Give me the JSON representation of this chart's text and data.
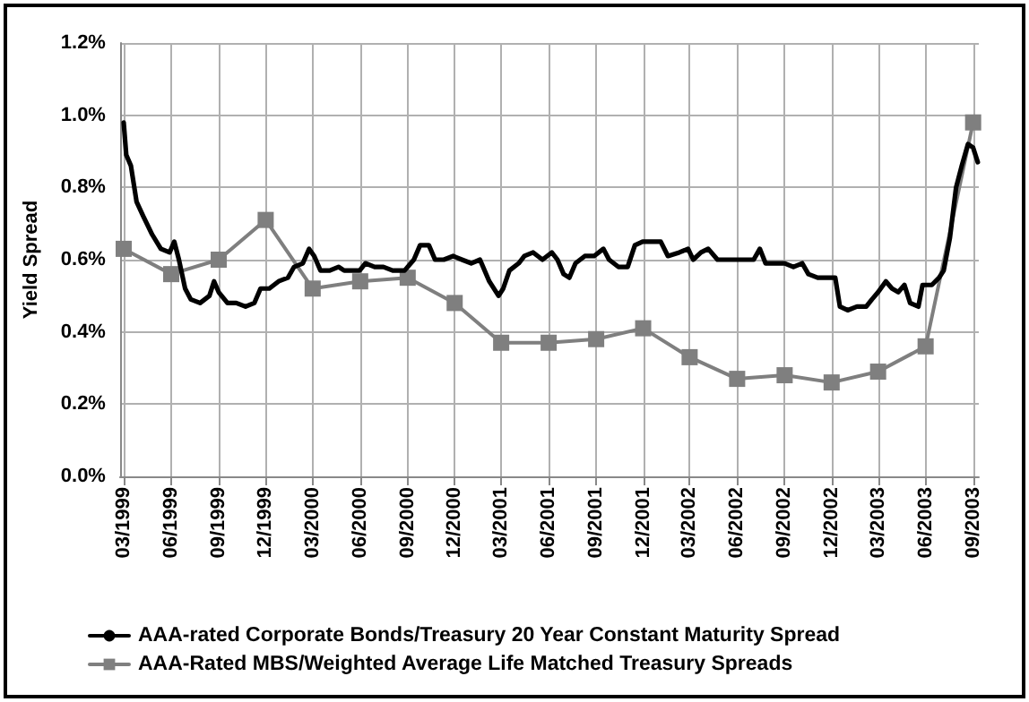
{
  "chart_data": {
    "type": "line",
    "ylabel": "Yield Spread",
    "legend": "bottom",
    "grid": true,
    "xlim": [
      "1999-02-22",
      "2003-09-12"
    ],
    "xticks": [
      {
        "value": "1999-03",
        "label": "03/1999"
      },
      {
        "value": "1999-06",
        "label": "06/1999"
      },
      {
        "value": "1999-09",
        "label": "09/1999"
      },
      {
        "value": "1999-12",
        "label": "12/1999"
      },
      {
        "value": "2000-03",
        "label": "03/2000"
      },
      {
        "value": "2000-06",
        "label": "06/2000"
      },
      {
        "value": "2000-09",
        "label": "09/2000"
      },
      {
        "value": "2000-12",
        "label": "12/2000"
      },
      {
        "value": "2001-03",
        "label": "03/2001"
      },
      {
        "value": "2001-06",
        "label": "06/2001"
      },
      {
        "value": "2001-09",
        "label": "09/2001"
      },
      {
        "value": "2001-12",
        "label": "12/2001"
      },
      {
        "value": "2002-03",
        "label": "03/2002"
      },
      {
        "value": "2002-06",
        "label": "06/2002"
      },
      {
        "value": "2002-09",
        "label": "09/2002"
      },
      {
        "value": "2002-12",
        "label": "12/2002"
      },
      {
        "value": "2003-03",
        "label": "03/2003"
      },
      {
        "value": "2003-06",
        "label": "06/2003"
      },
      {
        "value": "2003-09",
        "label": "09/2003"
      }
    ],
    "ylim": [
      0,
      1.2
    ],
    "yticks": [
      {
        "value": 0,
        "label": "0.0%"
      },
      {
        "value": 0.2,
        "label": "0.2%"
      },
      {
        "value": 0.4,
        "label": "0.4%"
      },
      {
        "value": 0.6,
        "label": "0.6%"
      },
      {
        "value": 0.8,
        "label": "0.8%"
      },
      {
        "value": 1.0,
        "label": "1.0%"
      },
      {
        "value": 1.2,
        "label": "1.2%"
      }
    ],
    "series": [
      {
        "name": "AAA-rated Corporate Bonds/Treasury 20 Year Constant Maturity Spread",
        "color": "#000000",
        "marker": "none",
        "line_style": "solid",
        "x": [
          "1999-03-01",
          "1999-03-06",
          "1999-03-15",
          "1999-03-26",
          "1999-04-08",
          "1999-04-25",
          "1999-05-12",
          "1999-05-29",
          "1999-06-07",
          "1999-06-16",
          "1999-06-28",
          "1999-07-09",
          "1999-07-27",
          "1999-08-14",
          "1999-08-23",
          "1999-09-01",
          "1999-09-18",
          "1999-10-05",
          "1999-10-23",
          "1999-11-09",
          "1999-11-21",
          "1999-12-08",
          "1999-12-26",
          "2000-01-13",
          "2000-01-25",
          "2000-02-11",
          "2000-02-23",
          "2000-03-04",
          "2000-03-16",
          "2000-04-03",
          "2000-04-20",
          "2000-05-01",
          "2000-05-19",
          "2000-05-31",
          "2000-06-11",
          "2000-06-29",
          "2000-07-16",
          "2000-08-03",
          "2000-08-26",
          "2000-09-13",
          "2000-09-25",
          "2000-10-12",
          "2000-10-24",
          "2000-11-10",
          "2000-11-28",
          "2000-12-15",
          "2001-01-02",
          "2001-01-19",
          "2001-02-06",
          "2001-02-24",
          "2001-03-05",
          "2001-03-17",
          "2001-04-04",
          "2001-04-15",
          "2001-05-02",
          "2001-05-20",
          "2001-06-07",
          "2001-06-18",
          "2001-06-30",
          "2001-07-11",
          "2001-07-23",
          "2001-08-10",
          "2001-08-28",
          "2001-09-15",
          "2001-09-26",
          "2001-10-14",
          "2001-11-01",
          "2001-11-15",
          "2001-11-30",
          "2001-12-17",
          "2002-01-04",
          "2002-01-18",
          "2002-02-09",
          "2002-02-26",
          "2002-03-08",
          "2002-03-23",
          "2002-04-06",
          "2002-04-24",
          "2002-05-11",
          "2002-05-29",
          "2002-06-16",
          "2002-07-03",
          "2002-07-15",
          "2002-07-26",
          "2002-08-13",
          "2002-09-01",
          "2002-09-18",
          "2002-10-05",
          "2002-10-17",
          "2002-11-04",
          "2002-11-21",
          "2002-12-08",
          "2002-12-17",
          "2003-01-01",
          "2003-01-19",
          "2003-02-06",
          "2003-02-17",
          "2003-03-01",
          "2003-03-16",
          "2003-03-28",
          "2003-04-09",
          "2003-04-21",
          "2003-05-02",
          "2003-05-18",
          "2003-05-26",
          "2003-06-13",
          "2003-06-27",
          "2003-07-06",
          "2003-07-18",
          "2003-07-30",
          "2003-08-10",
          "2003-08-22",
          "2003-09-01",
          "2003-09-10"
        ],
        "values": [
          0.98,
          0.89,
          0.86,
          0.76,
          0.72,
          0.67,
          0.63,
          0.62,
          0.65,
          0.6,
          0.52,
          0.49,
          0.48,
          0.5,
          0.54,
          0.51,
          0.48,
          0.48,
          0.47,
          0.48,
          0.52,
          0.52,
          0.54,
          0.55,
          0.58,
          0.59,
          0.63,
          0.61,
          0.57,
          0.57,
          0.58,
          0.57,
          0.57,
          0.57,
          0.59,
          0.58,
          0.58,
          0.57,
          0.57,
          0.6,
          0.64,
          0.64,
          0.6,
          0.6,
          0.61,
          0.6,
          0.59,
          0.6,
          0.54,
          0.5,
          0.52,
          0.57,
          0.59,
          0.61,
          0.62,
          0.6,
          0.62,
          0.6,
          0.56,
          0.55,
          0.59,
          0.61,
          0.61,
          0.63,
          0.6,
          0.58,
          0.58,
          0.64,
          0.65,
          0.65,
          0.65,
          0.61,
          0.62,
          0.63,
          0.6,
          0.62,
          0.63,
          0.6,
          0.6,
          0.6,
          0.6,
          0.6,
          0.63,
          0.59,
          0.59,
          0.59,
          0.58,
          0.59,
          0.56,
          0.55,
          0.55,
          0.55,
          0.47,
          0.46,
          0.47,
          0.47,
          0.49,
          0.51,
          0.54,
          0.52,
          0.51,
          0.53,
          0.48,
          0.47,
          0.53,
          0.53,
          0.55,
          0.57,
          0.66,
          0.8,
          0.86,
          0.92,
          0.91,
          0.87
        ]
      },
      {
        "name": "AAA-Rated MBS/Weighted Average Life Matched Treasury Spreads",
        "color": "#7f7f7f",
        "marker": "square",
        "line_style": "solid",
        "x": [
          "1999-03",
          "1999-06",
          "1999-09",
          "1999-12",
          "2000-03",
          "2000-06",
          "2000-09",
          "2000-12",
          "2001-03",
          "2001-06",
          "2001-09",
          "2001-12",
          "2002-03",
          "2002-06",
          "2002-09",
          "2002-12",
          "2003-03",
          "2003-06",
          "2003-09"
        ],
        "values": [
          0.63,
          0.56,
          0.6,
          0.71,
          0.52,
          0.54,
          0.55,
          0.48,
          0.37,
          0.37,
          0.38,
          0.41,
          0.33,
          0.27,
          0.28,
          0.26,
          0.29,
          0.36,
          0.98
        ]
      }
    ]
  }
}
